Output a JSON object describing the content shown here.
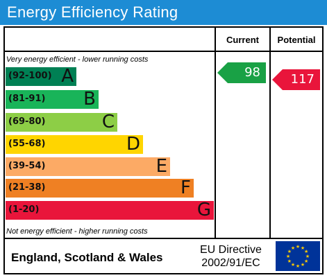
{
  "title": "Energy Efficiency Rating",
  "columns": {
    "current": "Current",
    "potential": "Potential"
  },
  "notes": {
    "top": "Very energy efficient - lower running costs",
    "bottom": "Not energy efficient - higher running costs"
  },
  "bands": [
    {
      "range": "(92-100)",
      "letter": "A",
      "color": "#008054"
    },
    {
      "range": "(81-91)",
      "letter": "B",
      "color": "#19b459"
    },
    {
      "range": "(69-80)",
      "letter": "C",
      "color": "#8dce46"
    },
    {
      "range": "(55-68)",
      "letter": "D",
      "color": "#ffd500"
    },
    {
      "range": "(39-54)",
      "letter": "E",
      "color": "#fcaa65"
    },
    {
      "range": "(21-38)",
      "letter": "F",
      "color": "#ef8023"
    },
    {
      "range": "(1-20)",
      "letter": "G",
      "color": "#e9153b"
    }
  ],
  "current_rating": {
    "value": "98",
    "color": "#19a145"
  },
  "potential_rating": {
    "value": "117",
    "color": "#e9153b"
  },
  "footer": {
    "region": "England, Scotland & Wales",
    "directive_line1": "EU Directive",
    "directive_line2": "2002/91/EC",
    "flag_icon": "eu-flag-icon",
    "flag_color": "#003399",
    "star_color": "#ffcc00"
  }
}
